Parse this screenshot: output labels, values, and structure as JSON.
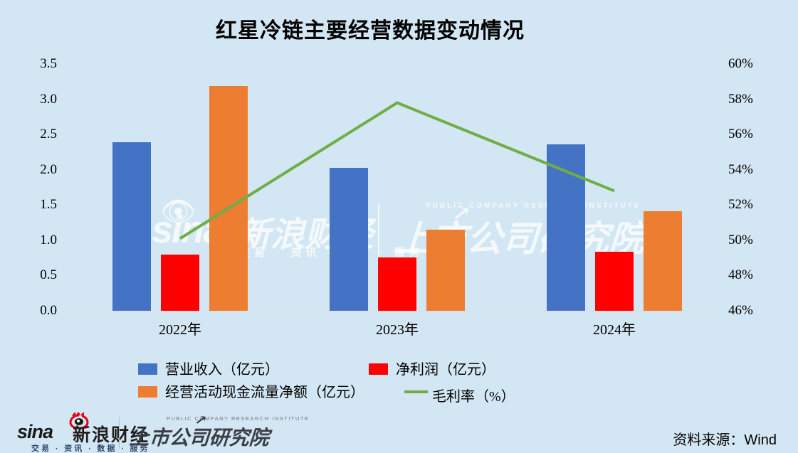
{
  "title": "红星冷链主要经营数据变动情况",
  "colors": {
    "background": "#d3e6f3",
    "revenue_bar": "#4472c4",
    "profit_bar": "#ff0000",
    "cashflow_bar": "#ed7d31",
    "margin_line": "#70ad47"
  },
  "chart_data": {
    "type": "bar",
    "categories": [
      "2022年",
      "2023年",
      "2024年"
    ],
    "series": [
      {
        "name": "营业收入（亿元）",
        "type": "bar",
        "axis": "left",
        "color": "#4472c4",
        "values": [
          2.39,
          2.03,
          2.36
        ]
      },
      {
        "name": "净利润（亿元）",
        "type": "bar",
        "axis": "left",
        "color": "#ff0000",
        "values": [
          0.8,
          0.76,
          0.84
        ]
      },
      {
        "name": "经营活动现金流量净额（亿元）",
        "type": "bar",
        "axis": "left",
        "color": "#ed7d31",
        "values": [
          3.19,
          1.15,
          1.41
        ]
      },
      {
        "name": "毛利率（%）",
        "type": "line",
        "axis": "right",
        "color": "#70ad47",
        "values": [
          50.1,
          57.8,
          52.8
        ]
      }
    ],
    "title": "红星冷链主要经营数据变动情况",
    "xlabel": "",
    "ylabel": "",
    "left_axis": {
      "ticks": [
        "3.5",
        "3.0",
        "2.5",
        "2.0",
        "1.5",
        "1.0",
        "0.5",
        "0.0"
      ],
      "min": 0,
      "max": 3.5
    },
    "right_axis": {
      "ticks": [
        "60%",
        "58%",
        "56%",
        "54%",
        "52%",
        "50%",
        "48%",
        "46%"
      ],
      "min": 46,
      "max": 60
    },
    "grid": false,
    "legend_position": "bottom"
  },
  "watermark": {
    "sina_eye": "👁",
    "sina_brand": "sina",
    "sina_cjk": "新浪财经",
    "sina_tagline": "交易 · 资讯 · 数据 · 服务",
    "institute_en": "PUBLIC COMPANY RESEARCH INSTITUTE",
    "institute_arrow": "↗",
    "institute_cjk": "上市公司研究院"
  },
  "footer": {
    "sina_brand": "sina",
    "sina_cjk": "新浪财经",
    "sina_tagline": "交易 · 资讯 · 数据 · 服务",
    "institute_en": "PUBLIC COMPANY RESEARCH INSTITUTE",
    "institute_arrow": "↗",
    "institute_cjk": "上市公司研究院",
    "source": "资料来源：Wind"
  }
}
